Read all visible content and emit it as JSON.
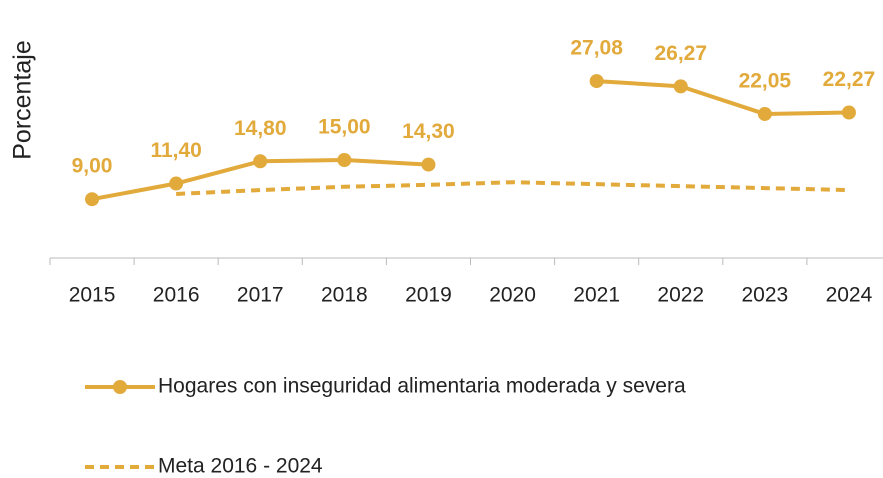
{
  "chart_data": {
    "type": "line",
    "y_label": "Porcentaje",
    "categories": [
      "2015",
      "2016",
      "2017",
      "2018",
      "2019",
      "2020",
      "2021",
      "2022",
      "2023",
      "2024"
    ],
    "series": [
      {
        "name": "Hogares con inseguridad alimentaria moderada y severa",
        "color": "#e2a93b",
        "style": "solid",
        "values": [
          9.0,
          11.4,
          14.8,
          15.0,
          14.3,
          null,
          27.08,
          26.27,
          22.05,
          22.27
        ],
        "value_labels": [
          "9,00",
          "11,40",
          "14,80",
          "15,00",
          "14,30",
          null,
          "27,08",
          "26,27",
          "22,05",
          "22,27"
        ]
      },
      {
        "name": "Meta 2016 - 2024",
        "color": "#e2a93b",
        "style": "dashed",
        "values": [
          null,
          9.8,
          10.4,
          10.9,
          11.2,
          11.6,
          11.3,
          11.0,
          10.7,
          10.4
        ]
      }
    ],
    "ylim": [
      0,
      30
    ]
  }
}
